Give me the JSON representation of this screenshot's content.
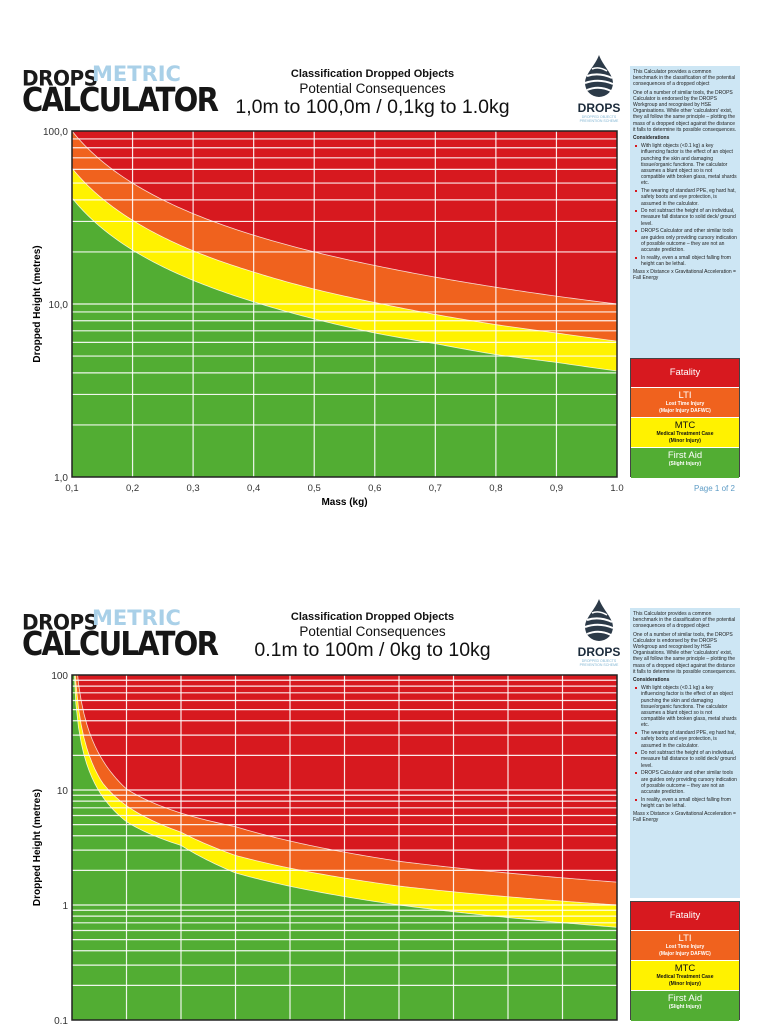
{
  "pages": [
    {
      "logo": {
        "drops": "DROPS",
        "metric": "METRIC",
        "calculator": "CALCULATOR"
      },
      "title_line1": "Classification Dropped Objects",
      "title_line2": "Potential Consequences",
      "title_line3": "1,0m to 100,0m / 0,1kg to 1.0kg",
      "drops_logo": {
        "name": "DROPS",
        "sub1": "DROPPED OBJECTS",
        "sub2": "PREVENTION SCHEME"
      },
      "page_number": "Page 1 of 2"
    },
    {
      "logo": {
        "drops": "DROPS",
        "metric": "METRIC",
        "calculator": "CALCULATOR"
      },
      "title_line1": "Classification Dropped Objects",
      "title_line2": "Potential Consequences",
      "title_line3": "0.1m to 100m / 0kg to 10kg",
      "drops_logo": {
        "name": "DROPS",
        "sub1": "DROPPED OBJECTS",
        "sub2": "PREVENTION SCHEME"
      }
    }
  ],
  "panel": {
    "intro": "This Calculator provides a common benchmark in the classification of the potential consequences of a dropped object",
    "para": "One of a number of similar tools, the DROPS Calculator is endorsed by the DROPS Workgroup and recognised by HSE Organisations. While other 'calculators' exist, they all follow the same principle – plotting the mass of a dropped object against the distance it falls to determine its possible consequences.",
    "considerations": "Considerations",
    "bullets": [
      "With light objects (<0.1 kg) a key influencing factor is the effect of an object punching the skin and damaging tissue/organic functions. The calculator assumes a blunt object so is not compatible with broken glass, metal shards etc.",
      "The wearing of standard PPE, eg hard hat, safety boots and eye protection, is assumed in the calculator.",
      "Do not subtract the height of an individual, measure fall distance to solid deck/ ground level.",
      "DROPS Calculator and other similar tools are guides only providing cursory indication of possible outcome – they are not an accurate prediction.",
      "In reality, even a small object falling from height can be lethal."
    ],
    "formula": "Mass x Distance x Gravitational Acceleration = Fall Energy"
  },
  "legend": [
    {
      "label": "Fatality",
      "sub1": "",
      "sub2": "",
      "color": "#d7191f",
      "text_color": "#ffffff"
    },
    {
      "label": "LTI",
      "sub1": "Lost Time Injury",
      "sub2": "(Major Injury DAFWC)",
      "color": "#f0621e",
      "text_color": "#ffffff"
    },
    {
      "label": "MTC",
      "sub1": "Medical Treatment Case",
      "sub2": "(Minor Injury)",
      "color": "#fff200",
      "text_color": "#111111"
    },
    {
      "label": "First Aid",
      "sub1": "(Slight Injury)",
      "sub2": "",
      "color": "#52ad33",
      "text_color": "#ffffff"
    }
  ],
  "chart_data": [
    {
      "type": "area",
      "xlabel": "Mass (kg)",
      "ylabel": "Dropped Height (metres)",
      "xlim": [
        0.1,
        1.0
      ],
      "ylim": [
        1,
        100
      ],
      "yscale": "log",
      "grid": true,
      "x_ticks": [
        0.1,
        0.2,
        0.3,
        0.4,
        0.5,
        0.6,
        0.7,
        0.8,
        0.9,
        1.0
      ],
      "x_tick_labels": [
        "0,1",
        "0,2",
        "0,3",
        "0,4",
        "0,5",
        "0,6",
        "0,7",
        "0,8",
        "0,9",
        "1.0"
      ],
      "y_ticks": [
        100,
        10,
        1
      ],
      "y_tick_labels": [
        "100,0",
        "10,0",
        "1,0"
      ],
      "x": [
        0.1,
        0.2,
        0.3,
        0.4,
        0.5,
        0.6,
        0.7,
        0.8,
        0.9,
        1.0
      ],
      "series": [
        {
          "name": "Fatality",
          "lower_bound": [
            100,
            50,
            33.3,
            25,
            20,
            16.7,
            14.3,
            12.5,
            11.1,
            10
          ]
        },
        {
          "name": "LTI",
          "lower_bound": [
            61,
            30.5,
            20.3,
            15.3,
            12.2,
            10.2,
            8.7,
            7.6,
            6.8,
            6.1
          ]
        },
        {
          "name": "MTC",
          "lower_bound": [
            41,
            20.5,
            13.7,
            10.3,
            8.2,
            6.8,
            5.9,
            5.1,
            4.6,
            4.1
          ]
        },
        {
          "name": "First Aid",
          "lower_bound": null
        }
      ]
    },
    {
      "type": "area",
      "xlabel": "",
      "ylabel": "Dropped Height (metres)",
      "xlim": [
        0,
        10
      ],
      "ylim": [
        0.1,
        100
      ],
      "yscale": "log",
      "grid": true,
      "x_ticks": [
        0,
        1,
        2,
        3,
        4,
        5,
        6,
        7,
        8,
        9,
        10
      ],
      "x_tick_labels": [],
      "y_ticks": [
        100,
        10,
        1,
        0.1
      ],
      "y_tick_labels": [
        "100",
        "10",
        "1",
        "0.1"
      ],
      "x": [
        0.1,
        0.55,
        1,
        2,
        3,
        6,
        10
      ],
      "series": [
        {
          "name": "Fatality",
          "lower_bound": [
            100,
            18.6,
            10.2,
            6.3,
            4.8,
            2.4,
            1.58
          ]
        },
        {
          "name": "LTI",
          "lower_bound": [
            61,
            11.7,
            7.3,
            4.3,
            2.7,
            1.46,
            1.0
          ]
        },
        {
          "name": "MTC",
          "lower_bound": [
            41,
            8.9,
            5.3,
            3.3,
            1.9,
            1.0,
            0.64
          ]
        },
        {
          "name": "First Aid",
          "lower_bound": null
        }
      ]
    }
  ]
}
